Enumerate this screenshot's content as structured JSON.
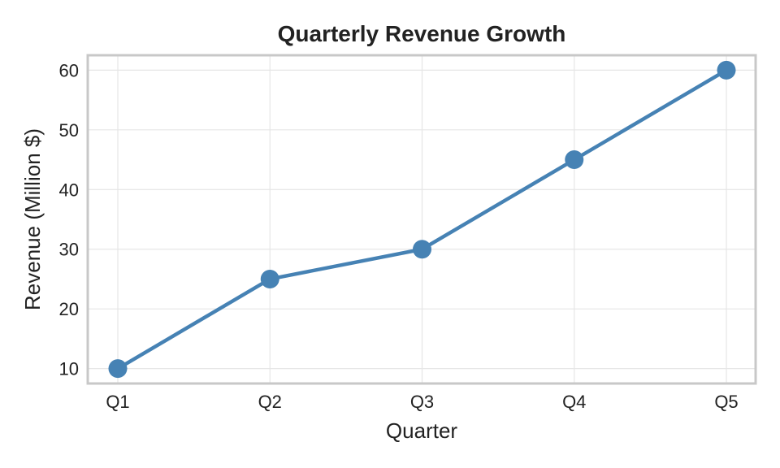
{
  "chart_data": {
    "type": "line",
    "title": "Quarterly Revenue Growth",
    "xlabel": "Quarter",
    "ylabel": "Revenue (Million $)",
    "categories": [
      "Q1",
      "Q2",
      "Q3",
      "Q4",
      "Q5"
    ],
    "series": [
      {
        "values": [
          10,
          25,
          30,
          45,
          60
        ],
        "color": "#4682b4"
      }
    ],
    "yticks": [
      10,
      20,
      30,
      40,
      50,
      60
    ],
    "ylim": [
      7.5,
      62.5
    ],
    "grid": true,
    "marker": "circle"
  }
}
